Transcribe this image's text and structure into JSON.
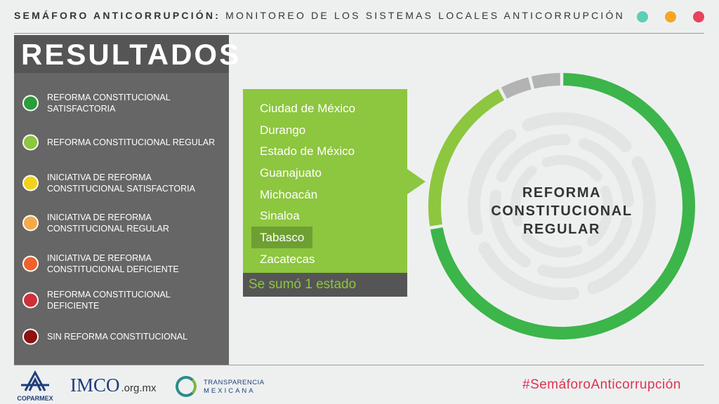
{
  "header": {
    "title_bold": "SEMÁFORO ANTICORRUPCIÓN:",
    "title_rest": "MONITOREO DE LOS SISTEMAS LOCALES ANTICORRUPCIÓN",
    "dot_colors": [
      "#5ccfb6",
      "#f5a623",
      "#e8435a"
    ]
  },
  "sidebar": {
    "title": "RESULTADOS",
    "legend": [
      {
        "label": "REFORMA CONSTITUCIONAL SATISFACTORIA",
        "color": "#2a9e3a"
      },
      {
        "label": "REFORMA CONSTITUCIONAL REGULAR",
        "color": "#8dc63f"
      },
      {
        "label": "INICIATIVA DE REFORMA CONSTITUCIONAL SATISFACTORIA",
        "color": "#f2d21b"
      },
      {
        "label": "INICIATIVA DE REFORMA CONSTITUCIONAL REGULAR",
        "color": "#f6a94a"
      },
      {
        "label": "INICIATIVA DE REFORMA CONSTITUCIONAL DEFICIENTE",
        "color": "#f0612b"
      },
      {
        "label": "REFORMA CONSTITUCIONAL DEFICIENTE",
        "color": "#d0303a"
      },
      {
        "label": "SIN REFORMA CONSTITUCIONAL",
        "color": "#8b1212"
      }
    ]
  },
  "states": {
    "items": [
      "Ciudad de México",
      "Durango",
      "Estado de México",
      "Guanajuato",
      "Michoacán",
      "Sinaloa",
      "Tabasco",
      "Zacatecas"
    ],
    "highlighted": "Tabasco",
    "footer": "Se sumó 1 estado",
    "color": "#8dc63f"
  },
  "ring": {
    "center_label": [
      "REFORMA",
      "CONSTITUCIONAL",
      "REGULAR"
    ],
    "segments": [
      {
        "name": "satisfactoria",
        "color": "#3cb54a",
        "fraction": 0.724
      },
      {
        "name": "regular",
        "color": "#8dc63f",
        "fraction": 0.199
      },
      {
        "name": "gris",
        "color": "#b3b3b3",
        "fraction": 0.0385
      },
      {
        "name": "gris",
        "color": "#b3b3b3",
        "fraction": 0.0385
      }
    ]
  },
  "footer": {
    "coparmex": "COPARMEX",
    "imco": "IMCO",
    "imco_domain": ".org.mx",
    "tm_line1": "TRANSPARENCIA",
    "tm_line2": "MEXICANA",
    "hashtag": "#SemáforoAnticorrupción"
  }
}
